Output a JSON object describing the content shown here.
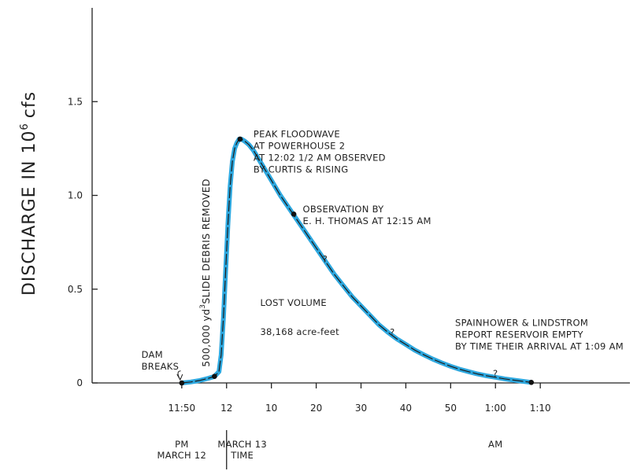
{
  "chart_data": {
    "type": "line",
    "ylabel_main": "DISCHARGE IN 10",
    "ylabel_exp": "6",
    "ylabel_unit": "cfs",
    "ylim": [
      0,
      2.0
    ],
    "y_ticks": [
      {
        "value": 0,
        "label": "0"
      },
      {
        "value": 0.5,
        "label": "0.5"
      },
      {
        "value": 1.0,
        "label": "1.0"
      },
      {
        "value": 1.5,
        "label": "1.5"
      }
    ],
    "xlim": [
      -20,
      100
    ],
    "x_ticks": [
      {
        "value": 0,
        "label": "11:50"
      },
      {
        "value": 10,
        "label": "12"
      },
      {
        "value": 20,
        "label": "10"
      },
      {
        "value": 30,
        "label": "20"
      },
      {
        "value": 40,
        "label": "30"
      },
      {
        "value": 50,
        "label": "40"
      },
      {
        "value": 60,
        "label": "50"
      },
      {
        "value": 70,
        "label": "1:00"
      },
      {
        "value": 80,
        "label": "1:10"
      }
    ],
    "series": [
      {
        "x": [
          0,
          2,
          4,
          6,
          7.3,
          8.3,
          8.8,
          9.3,
          9.8,
          10.3,
          10.8,
          11.3,
          11.8,
          12.3,
          12.8,
          13.3,
          14.0,
          14.5,
          15.0,
          16,
          18,
          20,
          22,
          24,
          26,
          28,
          30,
          32,
          34,
          36,
          38,
          40,
          42,
          44,
          46,
          48,
          50,
          52,
          54,
          56,
          58,
          60,
          62,
          64,
          66,
          68,
          70,
          72,
          74,
          76,
          78
        ],
        "y": [
          0,
          0.005,
          0.013,
          0.025,
          0.035,
          0.06,
          0.15,
          0.35,
          0.6,
          0.85,
          1.05,
          1.18,
          1.25,
          1.28,
          1.3,
          1.3,
          1.29,
          1.28,
          1.27,
          1.24,
          1.16,
          1.08,
          1.0,
          0.93,
          0.86,
          0.79,
          0.72,
          0.65,
          0.58,
          0.52,
          0.46,
          0.41,
          0.36,
          0.31,
          0.27,
          0.235,
          0.205,
          0.175,
          0.15,
          0.127,
          0.107,
          0.089,
          0.073,
          0.06,
          0.048,
          0.038,
          0.03,
          0.022,
          0.015,
          0.009,
          0.003
        ],
        "color": "#2ea8df"
      }
    ],
    "highlight_points": [
      {
        "x": 0,
        "y": 0
      },
      {
        "x": 7.3,
        "y": 0.035
      },
      {
        "x": 13.0,
        "y": 1.3
      },
      {
        "x": 25,
        "y": 0.9
      },
      {
        "x": 78,
        "y": 0.003
      }
    ],
    "question_marks": [
      {
        "x": 32,
        "y": 0.66,
        "label": "?"
      },
      {
        "x": 47,
        "y": 0.27,
        "label": "?"
      },
      {
        "x": 70,
        "y": 0.05,
        "label": "?"
      }
    ],
    "time_labels": [
      {
        "x": 0,
        "lines": [
          "PM",
          "MARCH 12"
        ]
      },
      {
        "x": 13.5,
        "lines": [
          "MARCH 13",
          "TIME"
        ]
      },
      {
        "x": 70,
        "lines": [
          "AM"
        ]
      }
    ],
    "divider_x": 10,
    "annotations": [
      {
        "x": -9,
        "y": 0.135,
        "lines": [
          "DAM",
          "BREAKS"
        ]
      },
      {
        "x": 16,
        "y": 1.31,
        "lines": [
          "PEAK FLOODWAVE",
          "AT POWERHOUSE 2",
          "AT 12:02 1/2 AM OBSERVED",
          "BY CURTIS & RISING"
        ]
      },
      {
        "x": 27,
        "y": 0.91,
        "lines": [
          "OBSERVATION BY",
          "E. H. THOMAS AT 12:15 AM"
        ]
      },
      {
        "x": 17.5,
        "y": 0.41,
        "lines": [
          "LOST VOLUME"
        ]
      },
      {
        "x": 17.5,
        "y": 0.255,
        "lines": [
          "38,168 acre-feet"
        ]
      },
      {
        "x": 61,
        "y": 0.305,
        "lines": [
          "SPAINHOWER & LINDSTROM",
          "REPORT RESERVOIR EMPTY",
          "BY TIME THEIR ARRIVAL AT 1:09 AM"
        ]
      }
    ],
    "vertical_annotation": {
      "x": 9.3,
      "y": 0.06,
      "prefix": "500,000 yd",
      "sup": "3",
      "suffix": "SLIDE DEBRIS REMOVED"
    },
    "grid": false,
    "legend": "none"
  }
}
